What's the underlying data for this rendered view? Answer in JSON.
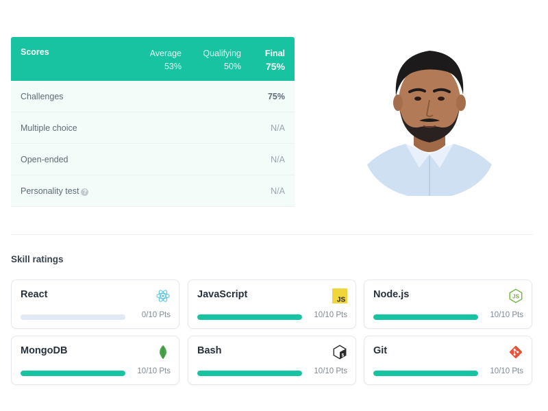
{
  "scores": {
    "title": "Scores",
    "columns": [
      {
        "label": "Average",
        "value": "53%"
      },
      {
        "label": "Qualifying",
        "value": "50%"
      },
      {
        "label": "Final",
        "value": "75%"
      }
    ],
    "rows": [
      {
        "name": "Challenges",
        "value": "75%"
      },
      {
        "name": "Multiple choice",
        "value": "N/A"
      },
      {
        "name": "Open-ended",
        "value": "N/A"
      },
      {
        "name": "Personality test",
        "value": "N/A",
        "help_icon": "question-icon"
      }
    ]
  },
  "skills": {
    "title": "Skill ratings",
    "items": [
      {
        "name": "React",
        "points": "0/10 Pts",
        "progress": 0,
        "icon": "react-icon"
      },
      {
        "name": "JavaScript",
        "points": "10/10 Pts",
        "progress": 1,
        "icon": "javascript-icon"
      },
      {
        "name": "Node.js",
        "points": "10/10 Pts",
        "progress": 1,
        "icon": "nodejs-icon"
      },
      {
        "name": "MongoDB",
        "points": "10/10 Pts",
        "progress": 1,
        "icon": "mongodb-icon"
      },
      {
        "name": "Bash",
        "points": "10/10 Pts",
        "progress": 1,
        "icon": "bash-icon"
      },
      {
        "name": "Git",
        "points": "10/10 Pts",
        "progress": 1,
        "icon": "git-icon"
      }
    ]
  },
  "colors": {
    "accent": "#17c3a0",
    "bar_track": "#e2e8f4"
  }
}
